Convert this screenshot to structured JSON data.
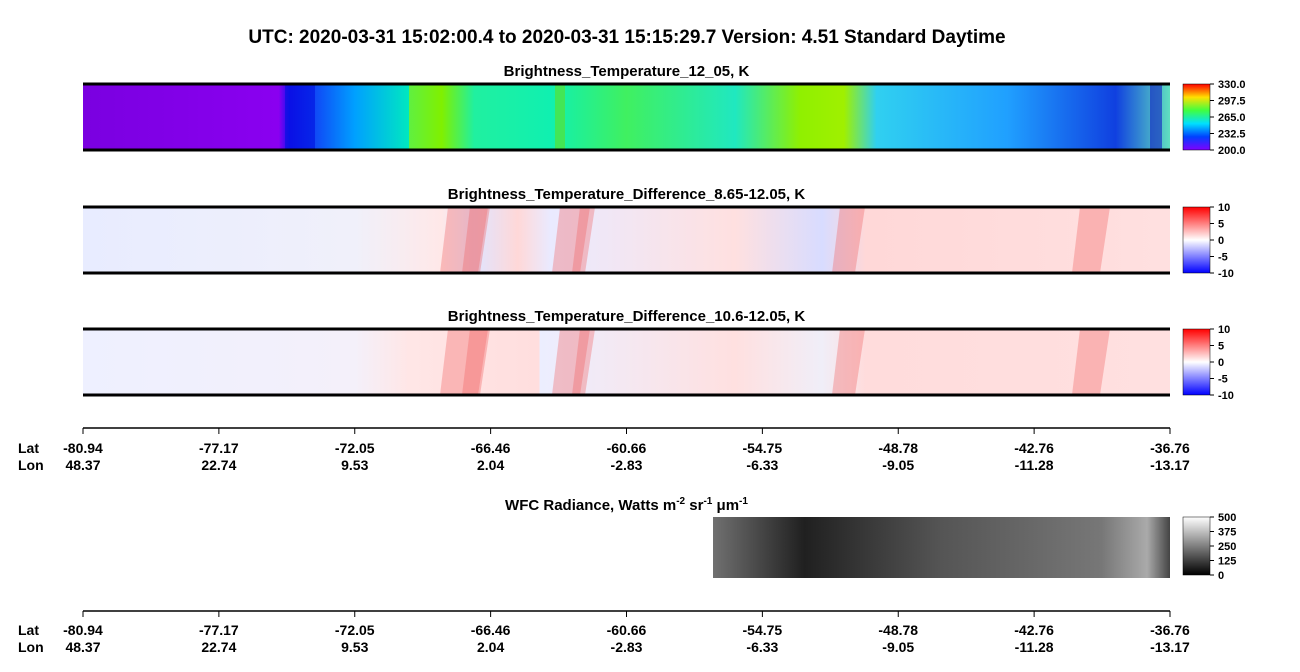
{
  "title": "UTC:  2020-03-31   15:02:00.4  to  2020-03-31   15:15:29.7    Version: 4.51  Standard Daytime",
  "panels": [
    {
      "title": "Brightness_Temperature_12_05, K",
      "colorbar_ticks": [
        "330.0",
        "297.5",
        "265.0",
        "232.5",
        "200.0"
      ]
    },
    {
      "title": "Brightness_Temperature_Difference_8.65-12.05, K",
      "colorbar_ticks": [
        "10",
        "5",
        "0",
        "-5",
        "-10"
      ]
    },
    {
      "title": "Brightness_Temperature_Difference_10.6-12.05, K",
      "colorbar_ticks": [
        "10",
        "5",
        "0",
        "-5",
        "-10"
      ]
    }
  ],
  "wfc": {
    "title_parts": [
      "WFC Radiance, Watts m",
      "-2",
      " sr",
      "-1",
      " μm",
      "-1"
    ],
    "colorbar_ticks": [
      "500",
      "375",
      "250",
      "125",
      "0"
    ]
  },
  "axis": {
    "lat_label": "Lat",
    "lon_label": "Lon",
    "lat": [
      "-80.94",
      "-77.17",
      "-72.05",
      "-66.46",
      "-60.66",
      "-54.75",
      "-48.78",
      "-42.76",
      "-36.76"
    ],
    "lon": [
      "48.37",
      "22.74",
      "9.53",
      "2.04",
      "-2.83",
      "-6.33",
      "-9.05",
      "-11.28",
      "-13.17"
    ]
  }
}
